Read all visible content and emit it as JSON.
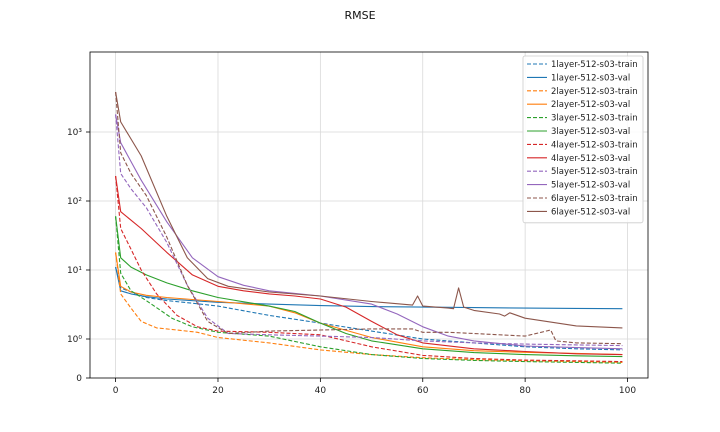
{
  "chart_data": {
    "type": "line",
    "title": "RMSE",
    "xlabel": "",
    "ylabel": "",
    "yscale": "log",
    "xlim": [
      -5,
      104
    ],
    "xticks": [
      "0",
      "20",
      "40",
      "60",
      "80",
      "100"
    ],
    "yticks": [
      "0",
      "10⁰",
      "10¹",
      "10²",
      "10³"
    ],
    "grid": true,
    "legend_position": "top-right",
    "series": [
      {
        "name": "1layer-512-s03-train",
        "color": "#1f77b4",
        "dash": true,
        "x": [
          0,
          1,
          3,
          6,
          10,
          15,
          20,
          30,
          40,
          50,
          60,
          70,
          80,
          90,
          99
        ],
        "y": [
          11,
          5.5,
          4.8,
          4.0,
          3.6,
          3.3,
          3.0,
          2.2,
          1.7,
          1.3,
          1.0,
          0.9,
          0.8,
          0.75,
          0.72
        ]
      },
      {
        "name": "1layer-512-s03-val",
        "color": "#1f77b4",
        "dash": false,
        "x": [
          0,
          1,
          3,
          6,
          10,
          20,
          30,
          40,
          50,
          60,
          70,
          80,
          90,
          99
        ],
        "y": [
          11,
          5.0,
          4.5,
          4.1,
          3.8,
          3.4,
          3.2,
          3.05,
          2.95,
          2.9,
          2.85,
          2.8,
          2.78,
          2.75
        ]
      },
      {
        "name": "2layer-512-s03-train",
        "color": "#ff7f0e",
        "dash": true,
        "x": [
          0,
          1,
          3,
          5,
          8,
          12,
          16,
          20,
          30,
          40,
          50,
          60,
          70,
          80,
          90,
          99
        ],
        "y": [
          18,
          4.5,
          2.8,
          1.8,
          1.45,
          1.35,
          1.25,
          1.05,
          0.9,
          0.72,
          0.6,
          0.52,
          0.47,
          0.44,
          0.42,
          0.4
        ]
      },
      {
        "name": "2layer-512-s03-val",
        "color": "#ff7f0e",
        "dash": false,
        "x": [
          0,
          1,
          3,
          6,
          10,
          20,
          30,
          35,
          40,
          50,
          60,
          70,
          80,
          90,
          99
        ],
        "y": [
          18,
          5.8,
          4.8,
          4.3,
          4.0,
          3.5,
          3.0,
          2.4,
          1.7,
          1.05,
          0.8,
          0.7,
          0.66,
          0.63,
          0.6
        ]
      },
      {
        "name": "3layer-512-s03-train",
        "color": "#2ca02c",
        "dash": true,
        "x": [
          0,
          1,
          3,
          6,
          11,
          15,
          20,
          30,
          40,
          50,
          60,
          70,
          80,
          90,
          99
        ],
        "y": [
          60,
          9.0,
          5.0,
          3.6,
          2.0,
          1.5,
          1.25,
          1.1,
          0.8,
          0.6,
          0.5,
          0.45,
          0.42,
          0.4,
          0.38
        ]
      },
      {
        "name": "3layer-512-s03-val",
        "color": "#2ca02c",
        "dash": false,
        "x": [
          0,
          1,
          3,
          6,
          10,
          15,
          20,
          30,
          35,
          40,
          45,
          50,
          60,
          70,
          80,
          90,
          99
        ],
        "y": [
          60,
          15,
          11,
          8.5,
          6.5,
          5.0,
          4.0,
          3.0,
          2.5,
          1.7,
          1.2,
          0.95,
          0.75,
          0.65,
          0.6,
          0.57,
          0.55
        ]
      },
      {
        "name": "4layer-512-s03-train",
        "color": "#d62728",
        "dash": true,
        "x": [
          0,
          1,
          3,
          5,
          8,
          12,
          16,
          20,
          30,
          40,
          50,
          60,
          70,
          80,
          90,
          99
        ],
        "y": [
          230,
          40,
          20,
          10,
          4.5,
          2.2,
          1.5,
          1.3,
          1.25,
          1.15,
          0.8,
          0.58,
          0.5,
          0.46,
          0.44,
          0.42
        ]
      },
      {
        "name": "4layer-512-s03-val",
        "color": "#d62728",
        "dash": false,
        "x": [
          0,
          1,
          5,
          10,
          15,
          20,
          25,
          30,
          35,
          40,
          45,
          50,
          55,
          60,
          70,
          80,
          90,
          99
        ],
        "y": [
          230,
          70,
          40,
          18,
          8.5,
          5.8,
          5.0,
          4.5,
          4.2,
          3.8,
          2.9,
          1.8,
          1.15,
          0.9,
          0.75,
          0.68,
          0.62,
          0.6
        ]
      },
      {
        "name": "5layer-512-s03-train",
        "color": "#9467bd",
        "dash": true,
        "x": [
          0,
          1,
          3,
          6,
          10,
          14,
          18,
          22,
          30,
          40,
          50,
          60,
          70,
          80,
          90,
          99
        ],
        "y": [
          1800,
          250,
          150,
          80,
          25,
          6.0,
          2.0,
          1.2,
          1.15,
          1.1,
          1.05,
          0.95,
          0.9,
          0.87,
          0.85,
          0.83
        ]
      },
      {
        "name": "5layer-512-s03-val",
        "color": "#9467bd",
        "dash": false,
        "x": [
          0,
          1,
          5,
          10,
          15,
          20,
          25,
          30,
          40,
          50,
          55,
          60,
          65,
          70,
          80,
          90,
          99
        ],
        "y": [
          1800,
          700,
          200,
          50,
          15,
          8.0,
          6.0,
          5.0,
          4.2,
          3.2,
          2.3,
          1.5,
          1.1,
          0.95,
          0.82,
          0.78,
          0.75
        ]
      },
      {
        "name": "6layer-512-s03-train",
        "color": "#8c564b",
        "dash": true,
        "x": [
          0,
          1,
          3,
          6,
          10,
          14,
          18,
          22,
          30,
          40,
          50,
          58,
          60,
          65,
          70,
          80,
          85,
          86,
          90,
          99
        ],
        "y": [
          3800,
          500,
          250,
          120,
          30,
          6.0,
          1.8,
          1.2,
          1.3,
          1.35,
          1.4,
          1.4,
          1.25,
          1.25,
          1.2,
          1.1,
          1.35,
          0.95,
          0.9,
          0.88
        ]
      },
      {
        "name": "6layer-512-s03-val",
        "color": "#8c564b",
        "dash": false,
        "x": [
          0,
          1,
          5,
          10,
          14,
          18,
          22,
          30,
          40,
          50,
          58,
          59,
          60,
          65,
          66,
          67,
          68,
          70,
          75,
          76,
          77,
          80,
          90,
          99
        ],
        "y": [
          3800,
          1400,
          450,
          60,
          15,
          7.5,
          5.8,
          4.8,
          4.2,
          3.5,
          3.1,
          4.2,
          3.0,
          2.8,
          2.75,
          5.5,
          2.9,
          2.6,
          2.3,
          2.15,
          2.4,
          2.0,
          1.55,
          1.45
        ]
      }
    ]
  }
}
